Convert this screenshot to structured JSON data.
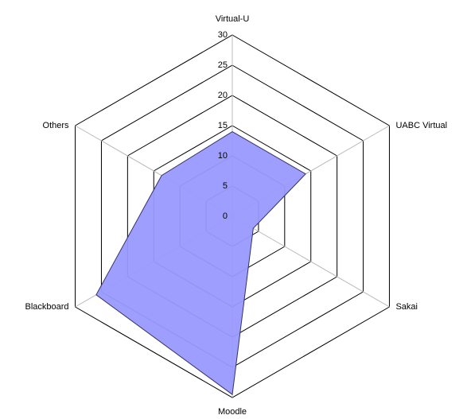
{
  "chart_data": {
    "type": "radar",
    "categories": [
      "Virtual-U",
      "UABC Virtual",
      "Sakai",
      "Moodle",
      "Blackboard",
      "Others"
    ],
    "values": [
      14,
      14,
      4,
      29.5,
      26,
      13.5
    ],
    "color": "#9999ff",
    "ylim": [
      0,
      30
    ],
    "yticks": [
      0,
      5,
      10,
      15,
      20,
      25,
      30
    ],
    "grid": true
  }
}
